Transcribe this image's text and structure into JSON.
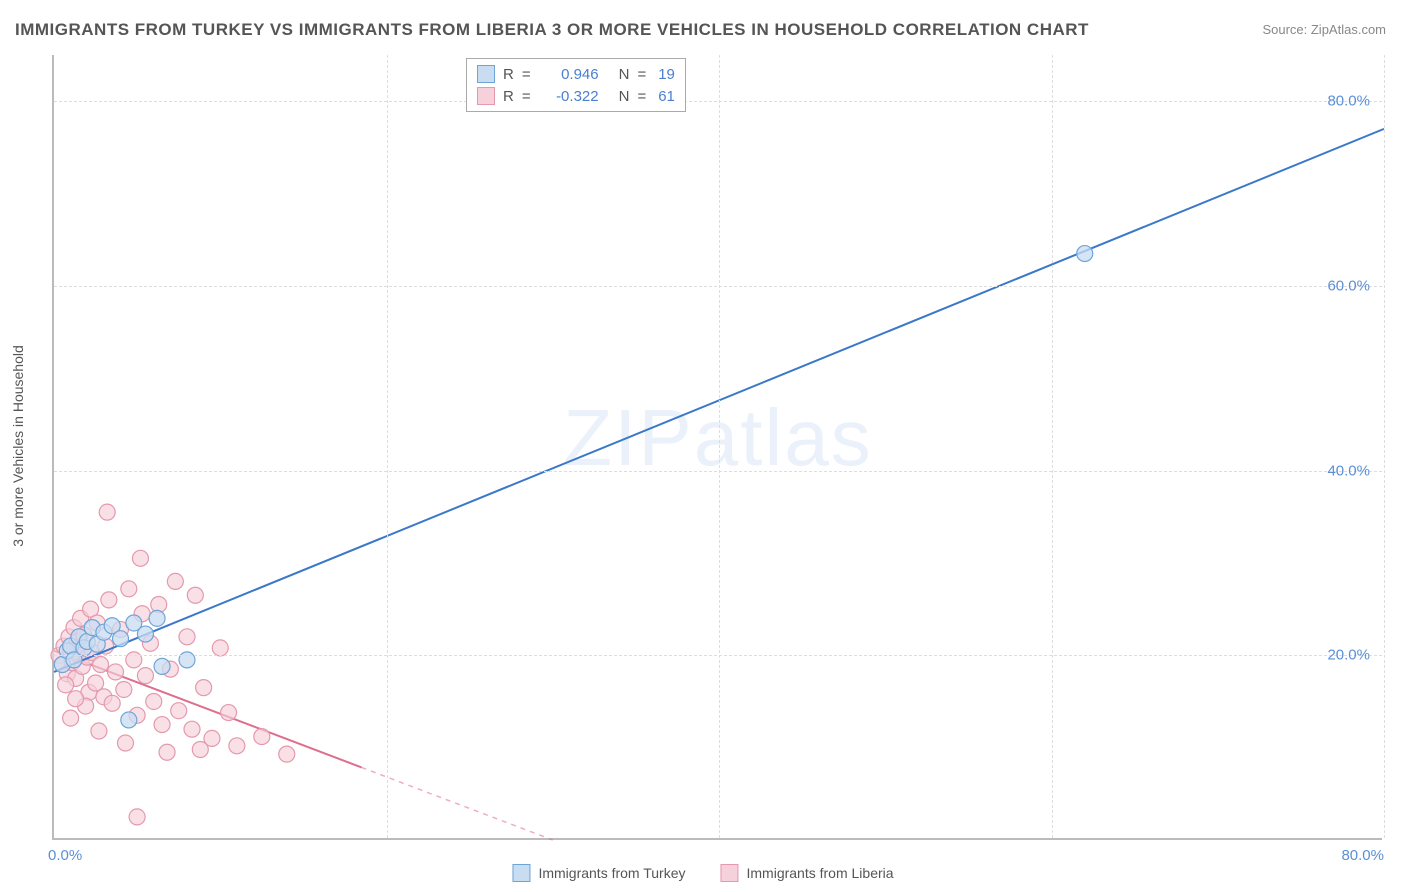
{
  "title": "IMMIGRANTS FROM TURKEY VS IMMIGRANTS FROM LIBERIA 3 OR MORE VEHICLES IN HOUSEHOLD CORRELATION CHART",
  "source_label": "Source: ZipAtlas.com",
  "y_axis_label": "3 or more Vehicles in Household",
  "watermark_zip": "ZIP",
  "watermark_atlas": "atlas",
  "chart": {
    "type": "scatter-correlation",
    "background_color": "#ffffff",
    "axis_color": "#bbbbbb",
    "grid_color": "#dddddd",
    "tick_label_color": "#5a8fd6",
    "text_color": "#555555",
    "xlim": [
      0,
      80
    ],
    "ylim": [
      0,
      85
    ],
    "x_ticks": [
      0,
      80
    ],
    "x_tick_labels": [
      "0.0%",
      "80.0%"
    ],
    "y_ticks": [
      20,
      40,
      60,
      80
    ],
    "y_tick_labels": [
      "20.0%",
      "40.0%",
      "60.0%",
      "80.0%"
    ],
    "x_grid_positions": [
      20,
      40,
      60,
      80
    ],
    "series": [
      {
        "name": "Immigrants from Turkey",
        "color_fill": "#c8dcf2",
        "color_stroke": "#6fa4d8",
        "line_color": "#3b78c9",
        "r_value": "0.946",
        "n_value": "19",
        "marker_radius": 8,
        "marker_opacity": 0.75,
        "line_width": 2,
        "trend_line": {
          "x1": 0,
          "y1": 18.2,
          "x2": 80,
          "y2": 77,
          "solid_until_x": 80
        },
        "points": [
          {
            "x": 0.5,
            "y": 19
          },
          {
            "x": 0.8,
            "y": 20.5
          },
          {
            "x": 1.0,
            "y": 21
          },
          {
            "x": 1.2,
            "y": 19.5
          },
          {
            "x": 1.5,
            "y": 22
          },
          {
            "x": 1.8,
            "y": 20.8
          },
          {
            "x": 2.0,
            "y": 21.5
          },
          {
            "x": 2.3,
            "y": 23
          },
          {
            "x": 2.6,
            "y": 21.2
          },
          {
            "x": 3.0,
            "y": 22.5
          },
          {
            "x": 3.5,
            "y": 23.2
          },
          {
            "x": 4.0,
            "y": 21.8
          },
          {
            "x": 4.8,
            "y": 23.5
          },
          {
            "x": 5.5,
            "y": 22.3
          },
          {
            "x": 6.2,
            "y": 24
          },
          {
            "x": 4.5,
            "y": 13
          },
          {
            "x": 8.0,
            "y": 19.5
          },
          {
            "x": 6.5,
            "y": 18.8
          },
          {
            "x": 62,
            "y": 63.5
          }
        ]
      },
      {
        "name": "Immigrants from Liberia",
        "color_fill": "#f6d0da",
        "color_stroke": "#e499ac",
        "line_color": "#de6e8d",
        "r_value": "-0.322",
        "n_value": "61",
        "marker_radius": 8,
        "marker_opacity": 0.65,
        "line_width": 2,
        "trend_line": {
          "x1": 0,
          "y1": 20.5,
          "x2": 30,
          "y2": 0,
          "solid_until_x": 18.5
        },
        "points": [
          {
            "x": 0.3,
            "y": 20
          },
          {
            "x": 0.5,
            "y": 19
          },
          {
            "x": 0.6,
            "y": 21
          },
          {
            "x": 0.8,
            "y": 18
          },
          {
            "x": 0.9,
            "y": 22
          },
          {
            "x": 1.0,
            "y": 20.5
          },
          {
            "x": 1.1,
            "y": 19.2
          },
          {
            "x": 1.2,
            "y": 23
          },
          {
            "x": 1.3,
            "y": 17.5
          },
          {
            "x": 1.4,
            "y": 21.5
          },
          {
            "x": 1.5,
            "y": 20
          },
          {
            "x": 1.6,
            "y": 24
          },
          {
            "x": 1.7,
            "y": 18.8
          },
          {
            "x": 1.8,
            "y": 22.2
          },
          {
            "x": 2.0,
            "y": 19.8
          },
          {
            "x": 2.1,
            "y": 16
          },
          {
            "x": 2.2,
            "y": 25
          },
          {
            "x": 2.3,
            "y": 20.3
          },
          {
            "x": 2.5,
            "y": 17
          },
          {
            "x": 2.6,
            "y": 23.5
          },
          {
            "x": 2.8,
            "y": 19
          },
          {
            "x": 3.0,
            "y": 15.5
          },
          {
            "x": 3.1,
            "y": 21
          },
          {
            "x": 3.3,
            "y": 26
          },
          {
            "x": 3.5,
            "y": 14.8
          },
          {
            "x": 3.7,
            "y": 18.2
          },
          {
            "x": 4.0,
            "y": 22.8
          },
          {
            "x": 4.2,
            "y": 16.3
          },
          {
            "x": 4.5,
            "y": 27.2
          },
          {
            "x": 4.8,
            "y": 19.5
          },
          {
            "x": 5.0,
            "y": 13.5
          },
          {
            "x": 5.3,
            "y": 24.5
          },
          {
            "x": 5.5,
            "y": 17.8
          },
          {
            "x": 5.8,
            "y": 21.3
          },
          {
            "x": 6.0,
            "y": 15
          },
          {
            "x": 6.3,
            "y": 25.5
          },
          {
            "x": 6.5,
            "y": 12.5
          },
          {
            "x": 7.0,
            "y": 18.5
          },
          {
            "x": 7.3,
            "y": 28
          },
          {
            "x": 7.5,
            "y": 14
          },
          {
            "x": 8.0,
            "y": 22
          },
          {
            "x": 8.3,
            "y": 12
          },
          {
            "x": 8.5,
            "y": 26.5
          },
          {
            "x": 9.0,
            "y": 16.5
          },
          {
            "x": 9.5,
            "y": 11
          },
          {
            "x": 10.0,
            "y": 20.8
          },
          {
            "x": 10.5,
            "y": 13.8
          },
          {
            "x": 11.0,
            "y": 10.2
          },
          {
            "x": 3.2,
            "y": 35.5
          },
          {
            "x": 5.2,
            "y": 30.5
          },
          {
            "x": 1.9,
            "y": 14.5
          },
          {
            "x": 2.7,
            "y": 11.8
          },
          {
            "x": 1.3,
            "y": 15.3
          },
          {
            "x": 0.7,
            "y": 16.8
          },
          {
            "x": 4.3,
            "y": 10.5
          },
          {
            "x": 6.8,
            "y": 9.5
          },
          {
            "x": 8.8,
            "y": 9.8
          },
          {
            "x": 12.5,
            "y": 11.2
          },
          {
            "x": 14.0,
            "y": 9.3
          },
          {
            "x": 5.0,
            "y": 2.5
          },
          {
            "x": 1.0,
            "y": 13.2
          }
        ]
      }
    ]
  },
  "legend_top": {
    "r_label": "R",
    "eq": "=",
    "n_label": "N"
  },
  "legend_bottom_labels": [
    "Immigrants from Turkey",
    "Immigrants from Liberia"
  ]
}
